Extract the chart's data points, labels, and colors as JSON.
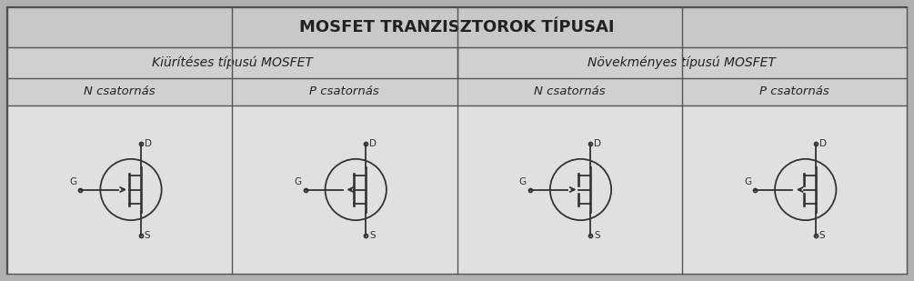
{
  "title": "MOSFET TRANZISZTOROK TÍPUSAI",
  "col_headers": [
    "Kiürítéses típusú MOSFET",
    "Növekményes típusú MOSFET"
  ],
  "row_headers": [
    "N csatornás",
    "P csatornás",
    "N csatornás",
    "P csatornás"
  ],
  "border_color": "#555555",
  "text_color": "#222222",
  "symbol_color": "#333333",
  "title_fontsize": 13,
  "header_fontsize": 10,
  "subheader_fontsize": 9.5,
  "title_bg": "#c8c8c8",
  "subhdr_bg": "#d0d0d0",
  "cell_bg": "#e0e0e0",
  "outer_bg": "#d4d4d4"
}
